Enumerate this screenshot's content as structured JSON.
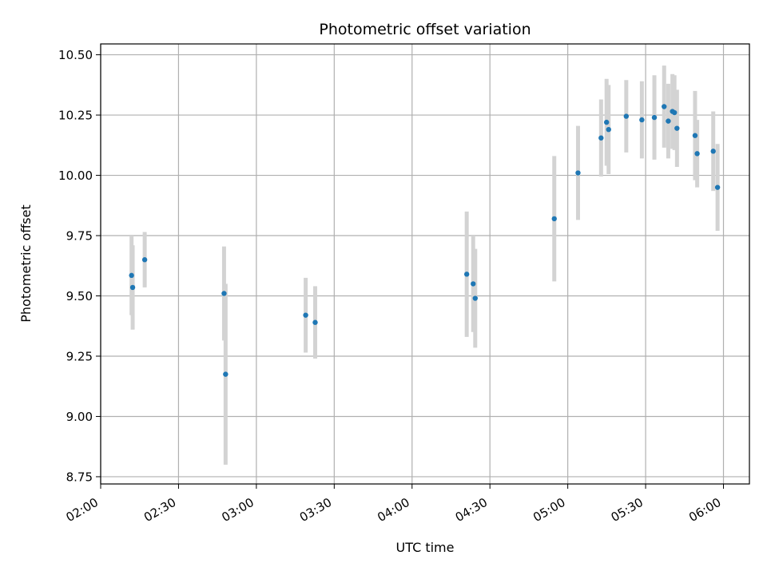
{
  "chart_data": {
    "type": "scatter",
    "title": "Photometric offset variation",
    "xlabel": "UTC time",
    "ylabel": "Photometric offset",
    "x_ticks": [
      "02:00",
      "02:30",
      "03:00",
      "03:30",
      "04:00",
      "04:30",
      "05:00",
      "05:30",
      "06:00"
    ],
    "y_ticks": [
      "8.75",
      "9.00",
      "9.25",
      "9.50",
      "9.75",
      "10.00",
      "10.25",
      "10.50"
    ],
    "xlim": [
      "02:00",
      "06:10"
    ],
    "ylim": [
      8.72,
      10.545
    ],
    "grid": true,
    "marker_color": "#1f77b4",
    "errorbar_color": "#d3d3d3",
    "points": [
      {
        "time": "02:11:54",
        "y": 9.585,
        "err": 0.165
      },
      {
        "time": "02:12:20",
        "y": 9.535,
        "err": 0.175
      },
      {
        "time": "02:16:58",
        "y": 9.65,
        "err": 0.115
      },
      {
        "time": "02:47:33",
        "y": 9.51,
        "err": 0.195
      },
      {
        "time": "02:48:08",
        "y": 9.175,
        "err": 0.375
      },
      {
        "time": "03:19:00",
        "y": 9.42,
        "err": 0.155
      },
      {
        "time": "03:22:40",
        "y": 9.39,
        "err": 0.15
      },
      {
        "time": "04:21:04",
        "y": 9.59,
        "err": 0.26
      },
      {
        "time": "04:23:33",
        "y": 9.55,
        "err": 0.2
      },
      {
        "time": "04:24:20",
        "y": 9.49,
        "err": 0.205
      },
      {
        "time": "04:54:48",
        "y": 9.82,
        "err": 0.26
      },
      {
        "time": "05:03:57",
        "y": 10.01,
        "err": 0.195
      },
      {
        "time": "05:12:50",
        "y": 10.155,
        "err": 0.16
      },
      {
        "time": "05:14:57",
        "y": 10.22,
        "err": 0.18
      },
      {
        "time": "05:15:44",
        "y": 10.19,
        "err": 0.185
      },
      {
        "time": "05:22:32",
        "y": 10.245,
        "err": 0.15
      },
      {
        "time": "05:28:33",
        "y": 10.23,
        "err": 0.16
      },
      {
        "time": "05:33:22",
        "y": 10.24,
        "err": 0.175
      },
      {
        "time": "05:37:08",
        "y": 10.285,
        "err": 0.17
      },
      {
        "time": "05:38:44",
        "y": 10.225,
        "err": 0.155
      },
      {
        "time": "05:40:20",
        "y": 10.265,
        "err": 0.155
      },
      {
        "time": "05:41:07",
        "y": 10.26,
        "err": 0.155
      },
      {
        "time": "05:42:05",
        "y": 10.195,
        "err": 0.16
      },
      {
        "time": "05:49:03",
        "y": 10.165,
        "err": 0.185
      },
      {
        "time": "05:49:52",
        "y": 10.09,
        "err": 0.14
      },
      {
        "time": "05:56:03",
        "y": 10.1,
        "err": 0.165
      },
      {
        "time": "05:57:43",
        "y": 9.95,
        "err": 0.18
      }
    ]
  }
}
